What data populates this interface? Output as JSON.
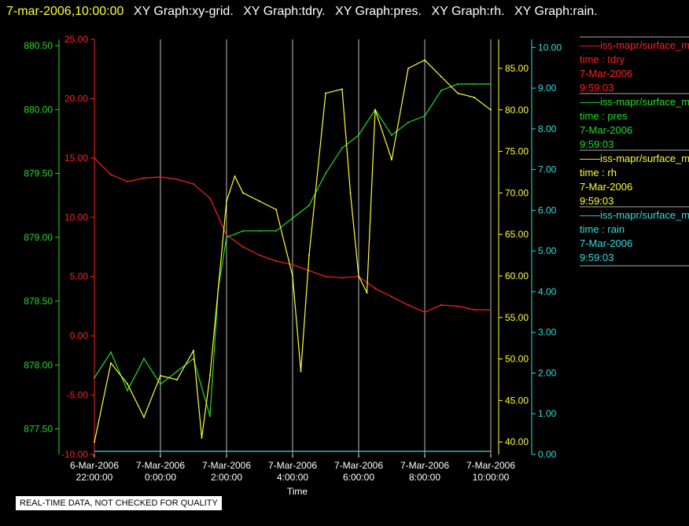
{
  "header": {
    "timestamp": "7-mar-2006,10:00:00",
    "graphs": [
      "XY Graph:xy-grid.",
      "XY Graph:tdry.",
      "XY Graph:pres.",
      "XY Graph:rh.",
      "XY Graph:rain."
    ]
  },
  "footer": {
    "disclaimer": "REAL-TIME DATA, NOT CHECKED FOR QUALITY"
  },
  "colors": {
    "background": "#000000",
    "tdry": "#ff2020",
    "pres": "#22dd22",
    "rh": "#ffff33",
    "rain": "#33dddd",
    "grid": "#bbbbbb",
    "header_time": "#ffff33",
    "header_text": "#ffffff"
  },
  "legend": [
    {
      "id": "tdry",
      "series": "——iss-mapr/surface_m",
      "field": "time : tdry",
      "date": "7-Mar-2006",
      "time": "9:59:03"
    },
    {
      "id": "pres",
      "series": "——iss-mapr/surface_m",
      "field": "time : pres",
      "date": "7-Mar-2006",
      "time": "9:59:03"
    },
    {
      "id": "rh",
      "series": "——iss-mapr/surface_m",
      "field": "time : rh",
      "date": "7-Mar-2006",
      "time": "9:59:03"
    },
    {
      "id": "rain",
      "series": "——iss-mapr/surface_m",
      "field": "time : rain",
      "date": "7-Mar-2006",
      "time": "9:59:03"
    }
  ],
  "chart_data": {
    "type": "line",
    "xlabel": "Time",
    "xlim": [
      "6-Mar-2006 22:00:00",
      "7-Mar-2006 10:00:00"
    ],
    "x_ticks": [
      {
        "date": "6-Mar-2006",
        "time": "22:00:00"
      },
      {
        "date": "7-Mar-2006",
        "time": "0:00:00"
      },
      {
        "date": "7-Mar-2006",
        "time": "2:00:00"
      },
      {
        "date": "7-Mar-2006",
        "time": "4:00:00"
      },
      {
        "date": "7-Mar-2006",
        "time": "6:00:00"
      },
      {
        "date": "7-Mar-2006",
        "time": "8:00:00"
      },
      {
        "date": "7-Mar-2006",
        "time": "10:00:00"
      }
    ],
    "grid": "vertical",
    "axes": {
      "pres": {
        "side": "left-outer",
        "ylim": [
          877.3,
          880.55
        ],
        "ticks": [
          "877.50",
          "878.00",
          "878.50",
          "879.00",
          "879.50",
          "880.00",
          "880.50"
        ]
      },
      "tdry": {
        "side": "left-inner",
        "ylim": [
          -10,
          25
        ],
        "ticks": [
          "-10.00",
          "-5.00",
          "0.00",
          "5.00",
          "10.00",
          "15.00",
          "20.00",
          "25.00"
        ]
      },
      "rh": {
        "side": "right-inner",
        "ylim": [
          38.5,
          88.5
        ],
        "ticks": [
          "40.00",
          "45.00",
          "50.00",
          "55.00",
          "60.00",
          "65.00",
          "70.00",
          "75.00",
          "80.00",
          "85.00"
        ]
      },
      "rain": {
        "side": "right-outer",
        "ylim": [
          0,
          10.2
        ],
        "ticks": [
          "0.00",
          "1.00",
          "2.00",
          "3.00",
          "4.00",
          "5.00",
          "6.00",
          "7.00",
          "8.00",
          "9.00",
          "10.00"
        ]
      }
    },
    "series": [
      {
        "id": "tdry",
        "x": [
          "22:00",
          "22:30",
          "23:00",
          "23:30",
          "0:00",
          "0:30",
          "1:00",
          "1:30",
          "2:00",
          "2:30",
          "3:00",
          "3:30",
          "4:00",
          "4:30",
          "5:00",
          "5:30",
          "6:00",
          "6:30",
          "7:00",
          "7:30",
          "8:00",
          "8:30",
          "9:00",
          "9:30",
          "10:00"
        ],
        "values": [
          15.0,
          13.6,
          13.0,
          13.3,
          13.4,
          13.2,
          12.8,
          11.6,
          8.5,
          7.5,
          6.8,
          6.3,
          6.0,
          5.5,
          5.0,
          4.9,
          5.0,
          4.0,
          3.3,
          2.6,
          2.0,
          2.6,
          2.5,
          2.2,
          2.2
        ]
      },
      {
        "id": "pres",
        "x": [
          "22:00",
          "22:30",
          "23:00",
          "23:30",
          "0:00",
          "0:30",
          "1:00",
          "1:30",
          "1:45",
          "2:00",
          "2:30",
          "3:00",
          "3:30",
          "4:00",
          "4:30",
          "5:00",
          "5:30",
          "6:00",
          "6:30",
          "7:00",
          "7:30",
          "8:00",
          "8:30",
          "9:00",
          "9:30",
          "10:00"
        ],
        "values": [
          877.9,
          878.1,
          877.8,
          878.05,
          877.85,
          877.95,
          878.05,
          877.6,
          878.6,
          879.0,
          879.05,
          879.05,
          879.05,
          879.15,
          879.25,
          879.5,
          879.7,
          879.8,
          880.0,
          879.8,
          879.9,
          879.95,
          880.15,
          880.2,
          880.2,
          880.2
        ]
      },
      {
        "id": "rh",
        "x": [
          "22:00",
          "22:30",
          "23:00",
          "23:30",
          "0:00",
          "0:30",
          "1:00",
          "1:15",
          "1:30",
          "2:00",
          "2:15",
          "2:30",
          "3:00",
          "3:30",
          "4:00",
          "4:15",
          "4:30",
          "5:00",
          "5:30",
          "5:45",
          "6:00",
          "6:15",
          "6:30",
          "7:00",
          "7:30",
          "8:00",
          "8:30",
          "9:00",
          "9:30",
          "10:00"
        ],
        "values": [
          40.0,
          49.5,
          47.0,
          43.0,
          48.0,
          47.5,
          51.0,
          40.5,
          48.0,
          69.0,
          72.0,
          70.0,
          69.0,
          68.0,
          60.0,
          48.5,
          62.5,
          82.0,
          82.5,
          70.0,
          60.0,
          58.0,
          80.0,
          74.0,
          85.0,
          86.0,
          84.0,
          82.0,
          81.5,
          80.0
        ]
      },
      {
        "id": "rain",
        "x": [
          "22:00",
          "10:00"
        ],
        "values": [
          0.0,
          0.0
        ]
      }
    ]
  }
}
